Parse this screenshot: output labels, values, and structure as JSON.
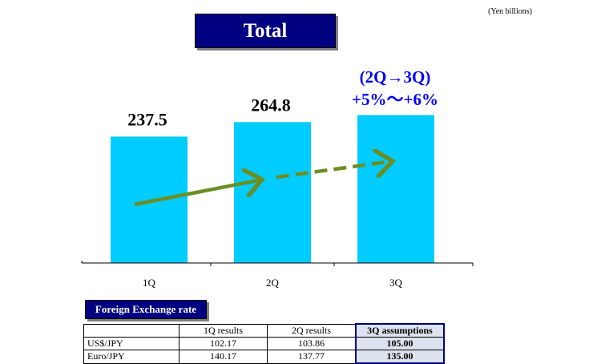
{
  "unit_note": "(Yen billions)",
  "title": "Total",
  "chart_data": {
    "type": "bar",
    "title": "Total",
    "unit": "(Yen billions)",
    "categories": [
      "1Q",
      "2Q",
      "3Q"
    ],
    "values": [
      237.5,
      264.8,
      278.0
    ],
    "data_labels": [
      "237.5",
      "264.8",
      ""
    ],
    "bar_color": "#00ccff",
    "arrow_color": "#6b8e23",
    "annotation": {
      "line1": "(2Q→3Q)",
      "line2": "+5%～+6%",
      "color": "#0000ff"
    }
  },
  "fx": {
    "header": "Foreign Exchange rate",
    "columns": [
      "",
      "1Q results",
      "2Q results",
      "3Q assumptions"
    ],
    "rows": [
      [
        "US$/JPY",
        "102.17",
        "103.86",
        "105.00"
      ],
      [
        "Euro/JPY",
        "140.17",
        "137.77",
        "135.00"
      ]
    ]
  }
}
